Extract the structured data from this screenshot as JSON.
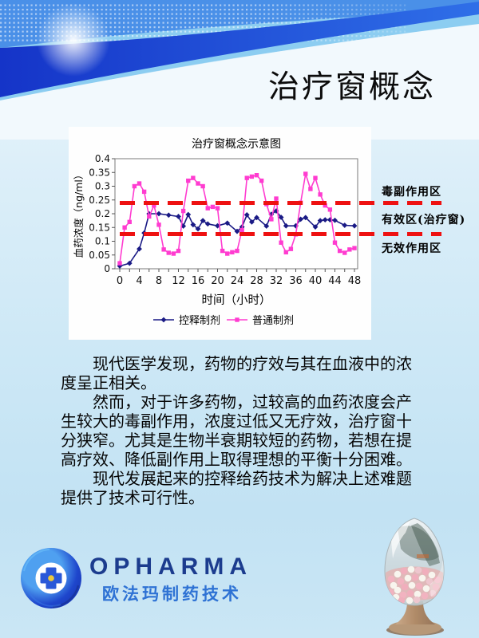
{
  "page": {
    "title": "治疗窗概念"
  },
  "chart_data": {
    "type": "line",
    "title": "治疗窗概念示意图",
    "xlabel": "时间（小时）",
    "ylabel": "血药浓度（ng/ml）",
    "xlim": [
      0,
      48
    ],
    "ylim": [
      0,
      0.4
    ],
    "x_ticks": [
      0,
      4,
      8,
      12,
      16,
      20,
      24,
      28,
      32,
      36,
      40,
      44,
      48
    ],
    "y_ticks": [
      0,
      0.05,
      0.1,
      0.15,
      0.2,
      0.25,
      0.3,
      0.35,
      0.4
    ],
    "grid": false,
    "legend_position": "bottom",
    "series": [
      {
        "name": "控释制剂",
        "color": "#1a1a85",
        "marker": "diamond",
        "x": [
          0,
          2,
          4,
          5,
          6,
          8,
          10,
          12,
          13,
          14,
          15,
          16,
          17,
          18,
          20,
          22,
          24,
          25,
          26,
          27,
          28,
          30,
          31,
          32,
          33,
          34,
          36,
          37,
          38,
          40,
          41,
          42,
          43,
          44,
          46,
          48
        ],
        "y": [
          0.01,
          0.02,
          0.072,
          0.13,
          0.2,
          0.2,
          0.195,
          0.19,
          0.155,
          0.197,
          0.16,
          0.145,
          0.175,
          0.163,
          0.156,
          0.166,
          0.136,
          0.152,
          0.196,
          0.17,
          0.186,
          0.155,
          0.198,
          0.21,
          0.187,
          0.156,
          0.156,
          0.18,
          0.186,
          0.152,
          0.175,
          0.178,
          0.178,
          0.176,
          0.158,
          0.156
        ]
      },
      {
        "name": "普通制剂",
        "color": "#ff3cd0",
        "marker": "square",
        "x": [
          0,
          1,
          2,
          3,
          4,
          5,
          6,
          7,
          8,
          9,
          10,
          11,
          12,
          13,
          14,
          15,
          16,
          17,
          18,
          19,
          20,
          21,
          22,
          23,
          24,
          25,
          26,
          27,
          28,
          29,
          30,
          31,
          32,
          33,
          34,
          35,
          36,
          37,
          38,
          39,
          40,
          41,
          42,
          43,
          44,
          45,
          46,
          47,
          48
        ],
        "y": [
          0.02,
          0.15,
          0.17,
          0.3,
          0.31,
          0.28,
          0.19,
          0.23,
          0.16,
          0.07,
          0.058,
          0.055,
          0.065,
          0.21,
          0.32,
          0.33,
          0.31,
          0.3,
          0.22,
          0.225,
          0.22,
          0.065,
          0.055,
          0.06,
          0.065,
          0.14,
          0.33,
          0.335,
          0.34,
          0.32,
          0.235,
          0.18,
          0.255,
          0.095,
          0.06,
          0.072,
          0.125,
          0.24,
          0.345,
          0.29,
          0.33,
          0.27,
          0.23,
          0.215,
          0.095,
          0.065,
          0.058,
          0.07,
          0.075
        ]
      }
    ],
    "reference_lines": [
      {
        "label": "有效区上界",
        "value": 0.24,
        "color": "#ee1111",
        "style": "dashed"
      },
      {
        "label": "有效区下界",
        "value": 0.125,
        "color": "#ee1111",
        "style": "dashed"
      }
    ],
    "zone_labels": [
      {
        "text": "毒副作用区",
        "position": "above-upper-line"
      },
      {
        "text": "有效区(治疗窗)",
        "position": "between-lines"
      },
      {
        "text": "无效作用区",
        "position": "below-lower-line"
      }
    ]
  },
  "body": {
    "paragraphs": [
      "现代医学发现，药物的疗效与其在血液中的浓度呈正相关。",
      "然而，对于许多药物，过较高的血药浓度会产生较大的毒副作用，浓度过低又无疗效，治疗窗十分狭窄。尤其是生物半衰期较短的药物，若想在提高疗效、降低副作用上取得理想的平衡十分困难。",
      "现代发展起来的控释给药技术为解决上述难题提供了技术可行性。"
    ]
  },
  "footer": {
    "brand_en": "OPHARMA",
    "brand_zh": "欧法玛制药技术"
  },
  "colors": {
    "accent_red": "#ee1111",
    "series_controlled_release": "#1a1a85",
    "series_ordinary": "#ff3cd0",
    "brand_dark_blue": "#1c3c8e",
    "brand_blue": "#2e72d4",
    "header_deep_blue": "#1534c8",
    "header_mid_blue": "#4a90e8"
  }
}
